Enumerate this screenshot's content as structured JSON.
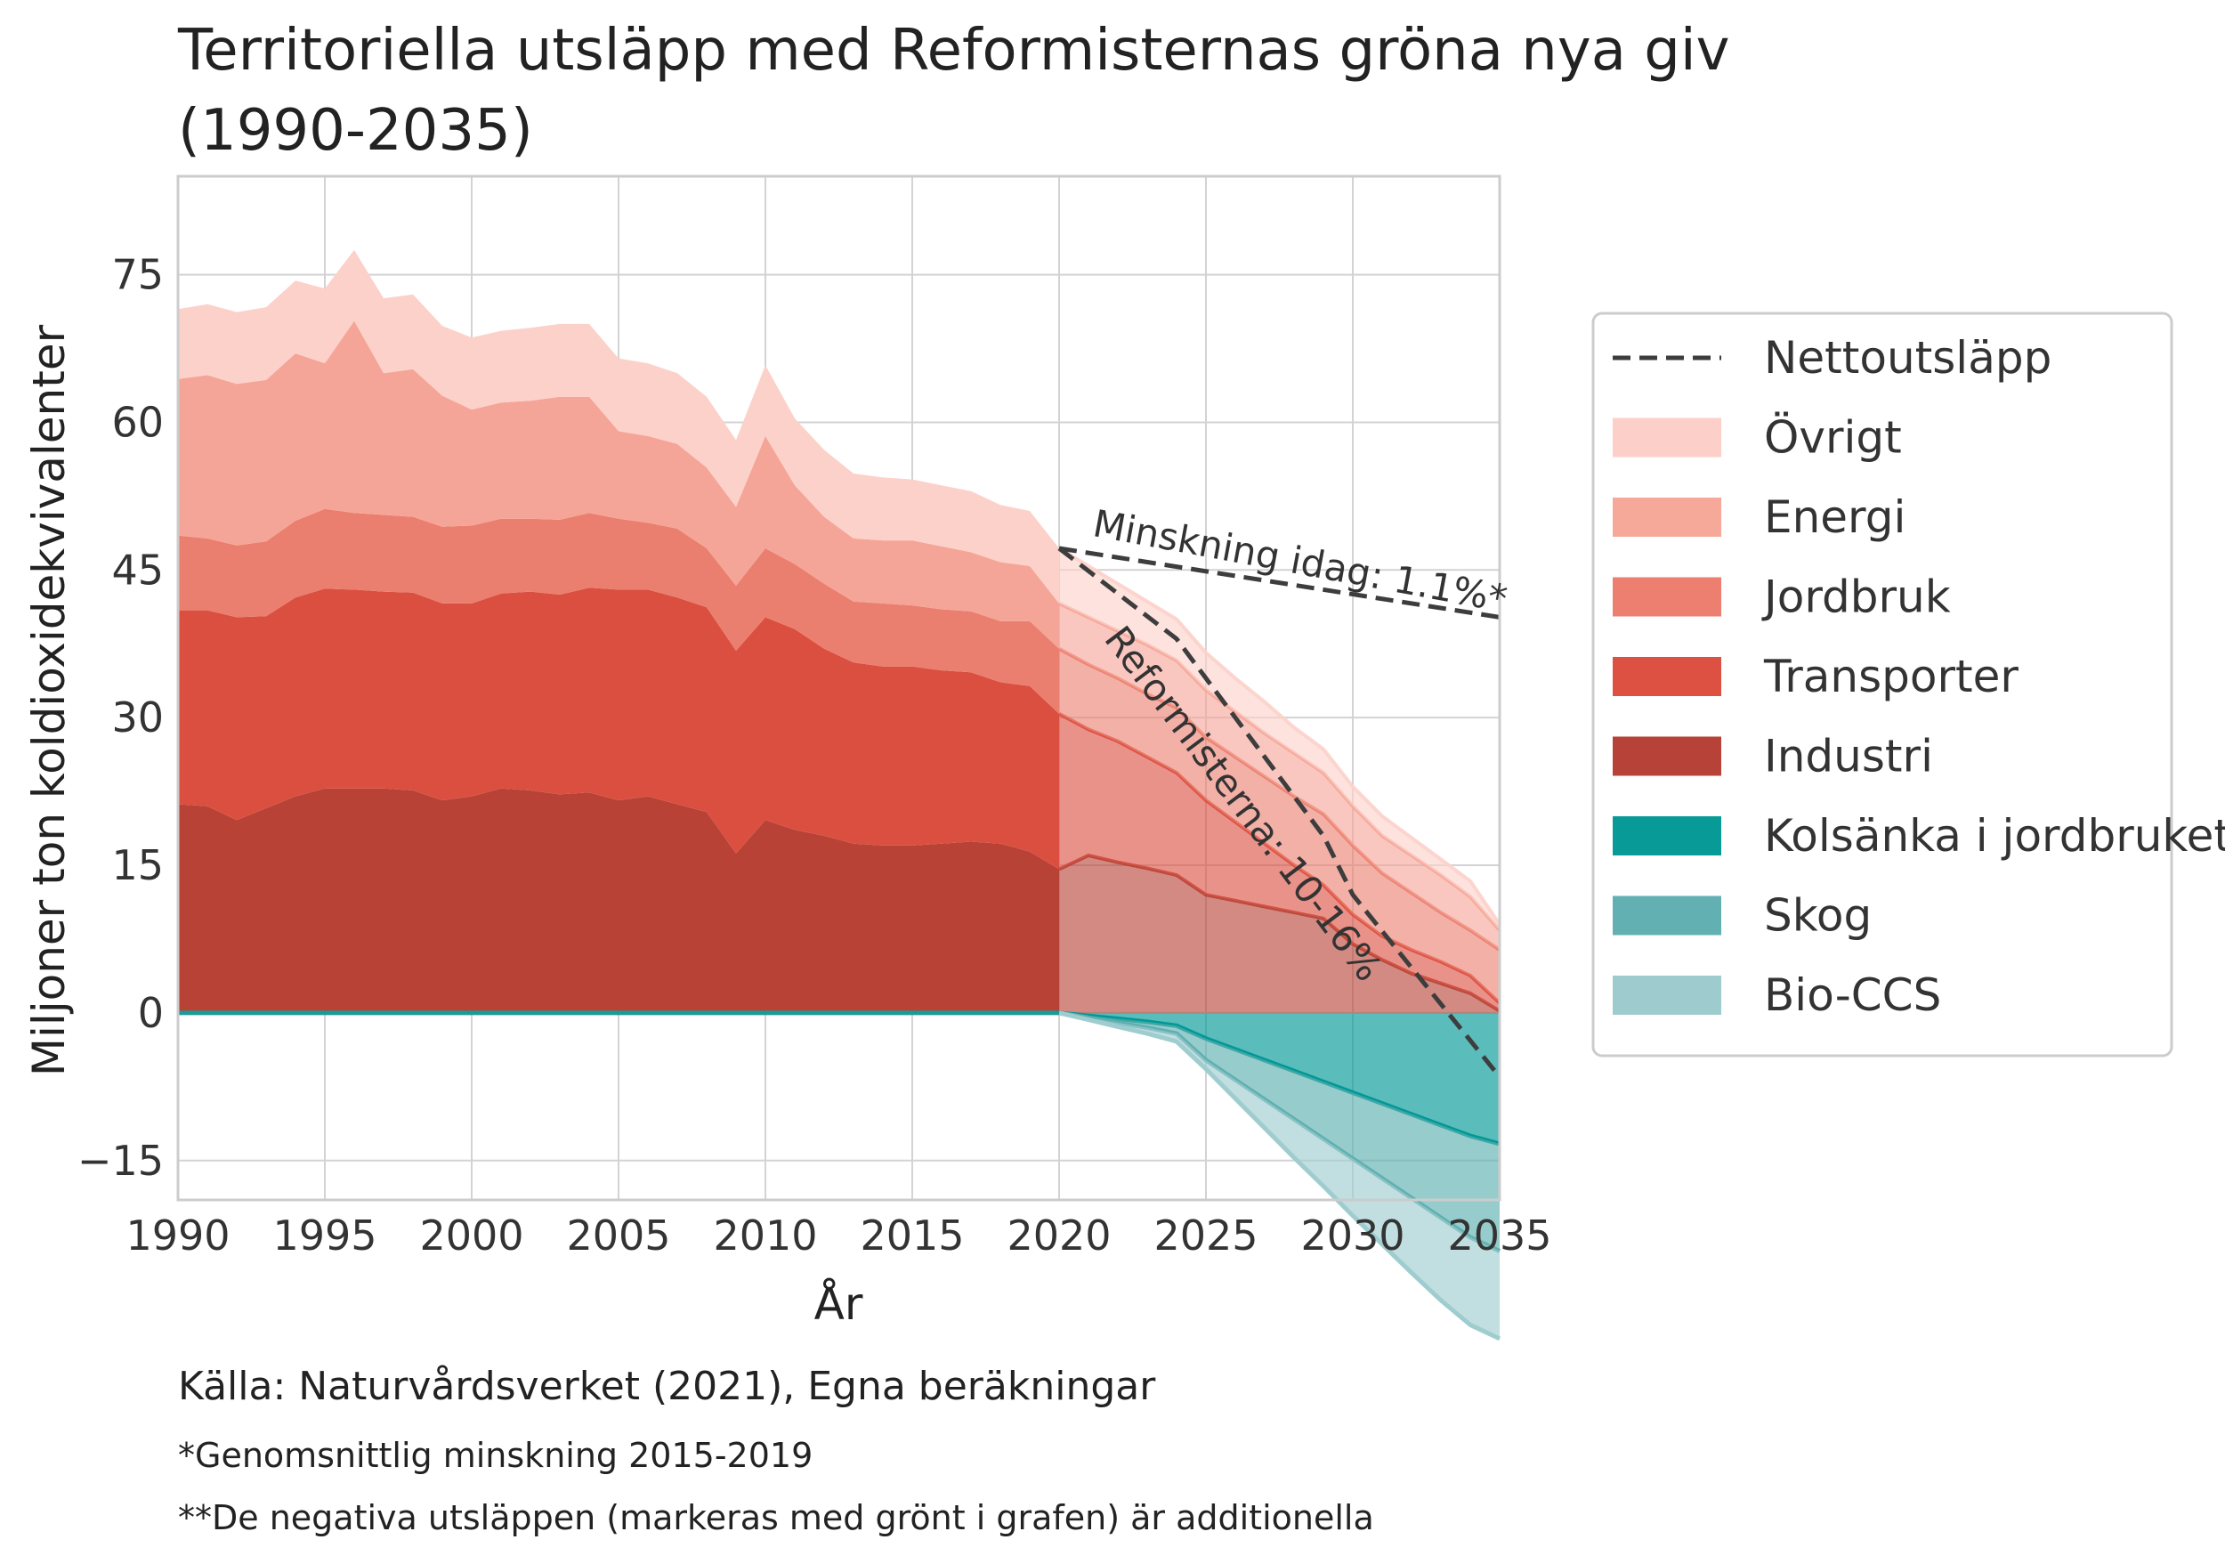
{
  "chart_data": {
    "type": "area",
    "title": "Territoriella utsläpp med Reformisternas gröna nya giv",
    "title_line2": "(1990-2035)",
    "xlabel": "År",
    "ylabel": "Miljoner ton koldioxidekvivalenter",
    "xlim": [
      1990,
      2035
    ],
    "ylim": [
      -19,
      85
    ],
    "xticks": [
      "1990",
      "1995",
      "2000",
      "2005",
      "2010",
      "2015",
      "2020",
      "2025",
      "2030",
      "2035"
    ],
    "yticks": [
      "75",
      "60",
      "45",
      "30",
      "15",
      "0",
      "−15"
    ],
    "grid": true,
    "legend_position": "right",
    "x": [
      1990,
      1991,
      1992,
      1993,
      1994,
      1995,
      1996,
      1997,
      1998,
      1999,
      2000,
      2001,
      2002,
      2003,
      2004,
      2005,
      2006,
      2007,
      2008,
      2009,
      2010,
      2011,
      2012,
      2013,
      2014,
      2015,
      2016,
      2017,
      2018,
      2019,
      2020
    ],
    "series": [
      {
        "name": "Industri",
        "color": "#b84236",
        "values": [
          21.2,
          21,
          19.6,
          20.8,
          22,
          22.8,
          22.8,
          22.8,
          22.6,
          21.6,
          22,
          22.8,
          22.6,
          22.2,
          22.4,
          21.6,
          22,
          21.2,
          20.4,
          16.2,
          19.6,
          18.6,
          18,
          17.2,
          17,
          17,
          17.2,
          17.4,
          17.2,
          16.4,
          14.6
        ]
      },
      {
        "name": "Transporter",
        "color": "#db4f40",
        "values": [
          19.7,
          19.9,
          20.6,
          19.5,
          20.2,
          20.3,
          20.2,
          20,
          20.1,
          20,
          19.6,
          19.8,
          20.2,
          20.3,
          20.8,
          21.4,
          21,
          21,
          20.8,
          20.6,
          20.6,
          20.4,
          19,
          18.4,
          18.2,
          18.2,
          17.6,
          17.2,
          16.4,
          16.8,
          15.8
        ]
      },
      {
        "name": "Jordbruk",
        "color": "#eb7f6f",
        "values": [
          7.6,
          7.3,
          7.3,
          7.6,
          7.8,
          8.1,
          7.8,
          7.8,
          7.7,
          7.8,
          7.9,
          7.6,
          7.4,
          7.6,
          7.6,
          7.2,
          6.8,
          7,
          6,
          6.6,
          7,
          6.6,
          6.6,
          6.2,
          6.4,
          6.2,
          6.2,
          6.2,
          6.2,
          6.6,
          6.6
        ]
      },
      {
        "name": "Energi",
        "color": "#f5a597",
        "values": [
          15.9,
          16.6,
          16.4,
          16.4,
          17,
          14.8,
          19.5,
          14.4,
          15,
          13.3,
          11.8,
          11.8,
          12,
          12.5,
          11.8,
          8.9,
          8.8,
          8.6,
          8.2,
          8,
          11.4,
          8,
          6.8,
          6.4,
          6.4,
          6.6,
          6.4,
          6,
          6,
          5.6,
          4.6
        ]
      },
      {
        "name": "Övrigt",
        "color": "#fcd1ca",
        "values": [
          7.1,
          7.2,
          7.3,
          7.4,
          7.4,
          7.6,
          7.2,
          7.6,
          7.6,
          7.1,
          7.3,
          7.3,
          7.4,
          7.4,
          7.4,
          7.4,
          7.4,
          7.2,
          7.2,
          6.8,
          7.2,
          6.8,
          6.8,
          6.6,
          6.4,
          6.2,
          6.2,
          6.2,
          5.8,
          5.6,
          5.6
        ]
      }
    ],
    "projection": {
      "x": [
        2020,
        2021,
        2022,
        2023,
        2024,
        2025,
        2026,
        2027,
        2028,
        2029,
        2030,
        2031,
        2032,
        2033,
        2034,
        2035
      ],
      "cumulative_tops": [
        {
          "name": "Industri",
          "values": [
            14.6,
            16,
            15.3,
            14.7,
            14,
            12,
            11.4,
            10.8,
            10.2,
            9.6,
            7,
            5.4,
            4,
            3,
            2,
            0.2
          ]
        },
        {
          "name": "Transporter",
          "values": [
            30.4,
            28.8,
            27.6,
            26,
            24.4,
            21.6,
            19.4,
            17.2,
            15,
            13,
            10,
            7.8,
            6.4,
            5.2,
            3.8,
            1
          ]
        },
        {
          "name": "Jordbruk",
          "values": [
            37,
            35.4,
            34,
            32.4,
            31,
            28,
            26,
            24,
            22,
            20.2,
            17,
            14.2,
            12.2,
            10.2,
            8.4,
            6.4
          ]
        },
        {
          "name": "Energi",
          "values": [
            41.6,
            40.2,
            38.8,
            37.4,
            35.8,
            32.8,
            30.6,
            28.4,
            26.4,
            24.4,
            21,
            18,
            16,
            14,
            11.8,
            8.4
          ]
        },
        {
          "name": "Övrigt",
          "values": [
            47.2,
            45.4,
            43.6,
            41.8,
            40,
            36.6,
            34,
            31.6,
            29,
            26.8,
            23,
            20,
            17.8,
            15.6,
            13.4,
            9
          ]
        }
      ],
      "negative_series": [
        {
          "name": "Kolsänka i jordbruket",
          "color": "#029896",
          "legend_color": "#079a97",
          "values": [
            0,
            -0.3,
            -0.6,
            -0.9,
            -1.3,
            -2.6,
            -3.7,
            -4.8,
            -5.9,
            -7,
            -8.1,
            -9.2,
            -10.3,
            -11.4,
            -12.5,
            -13.3
          ]
        },
        {
          "name": "Skog",
          "color": "#60b0b1",
          "legend_color": "#62b0b1",
          "values": [
            0,
            -0.2,
            -0.4,
            -0.6,
            -0.8,
            -2.2,
            -3.1,
            -4,
            -4.9,
            -5.8,
            -6.7,
            -7.6,
            -8.5,
            -9.4,
            -10.3,
            -10.9
          ]
        },
        {
          "name": "Bio-CCS",
          "color": "#9fcdcf",
          "legend_color": "#9ecbcd",
          "values": [
            0,
            -0.2,
            -0.4,
            -0.6,
            -0.8,
            -0.9,
            -1.9,
            -2.9,
            -3.9,
            -4.8,
            -5.8,
            -6.7,
            -7.6,
            -8.4,
            -8.9,
            -8.9
          ]
        }
      ]
    },
    "nettoutslapp_line": {
      "name": "Nettoutsläpp",
      "color": "#3d3d3d",
      "x": [
        2020,
        2024,
        2029,
        2030,
        2035
      ],
      "y": [
        47.2,
        38,
        18,
        12,
        -6.5
      ]
    },
    "trend_line": {
      "x": [
        2020,
        2035
      ],
      "y": [
        47.2,
        40.2
      ]
    },
    "annotations": [
      {
        "text": "Minskning idag: 1.1%*",
        "x": 2021.1,
        "y": 48.5,
        "angle": 10.5
      },
      {
        "text": "Reformisterna: 10-16%",
        "x": 2021.5,
        "y": 38,
        "angle": 53
      }
    ]
  },
  "legend": [
    {
      "label": "Nettoutsläpp",
      "kind": "dashed",
      "color": "#3d3d3d"
    },
    {
      "label": "Övrigt",
      "kind": "swatch",
      "color": "#fccfc8"
    },
    {
      "label": "Energi",
      "kind": "swatch",
      "color": "#f6a899"
    },
    {
      "label": "Jordbruk",
      "kind": "swatch",
      "color": "#ec7f6f"
    },
    {
      "label": "Transporter",
      "kind": "swatch",
      "color": "#dc5142"
    },
    {
      "label": "Industri",
      "kind": "swatch",
      "color": "#b74237"
    },
    {
      "label": "Kolsänka i jordbruket",
      "kind": "swatch",
      "color": "#079a97"
    },
    {
      "label": "Skog",
      "kind": "swatch",
      "color": "#62b0b1"
    },
    {
      "label": "Bio-CCS",
      "kind": "swatch",
      "color": "#9ecbcd"
    }
  ],
  "footer": {
    "source": "Källa: Naturvårdsverket (2021), Egna beräkningar",
    "note1": "*Genomsnittlig minskning 2015-2019",
    "note2": "**De negativa utsläppen (markeras med grönt i grafen) är additionella"
  }
}
